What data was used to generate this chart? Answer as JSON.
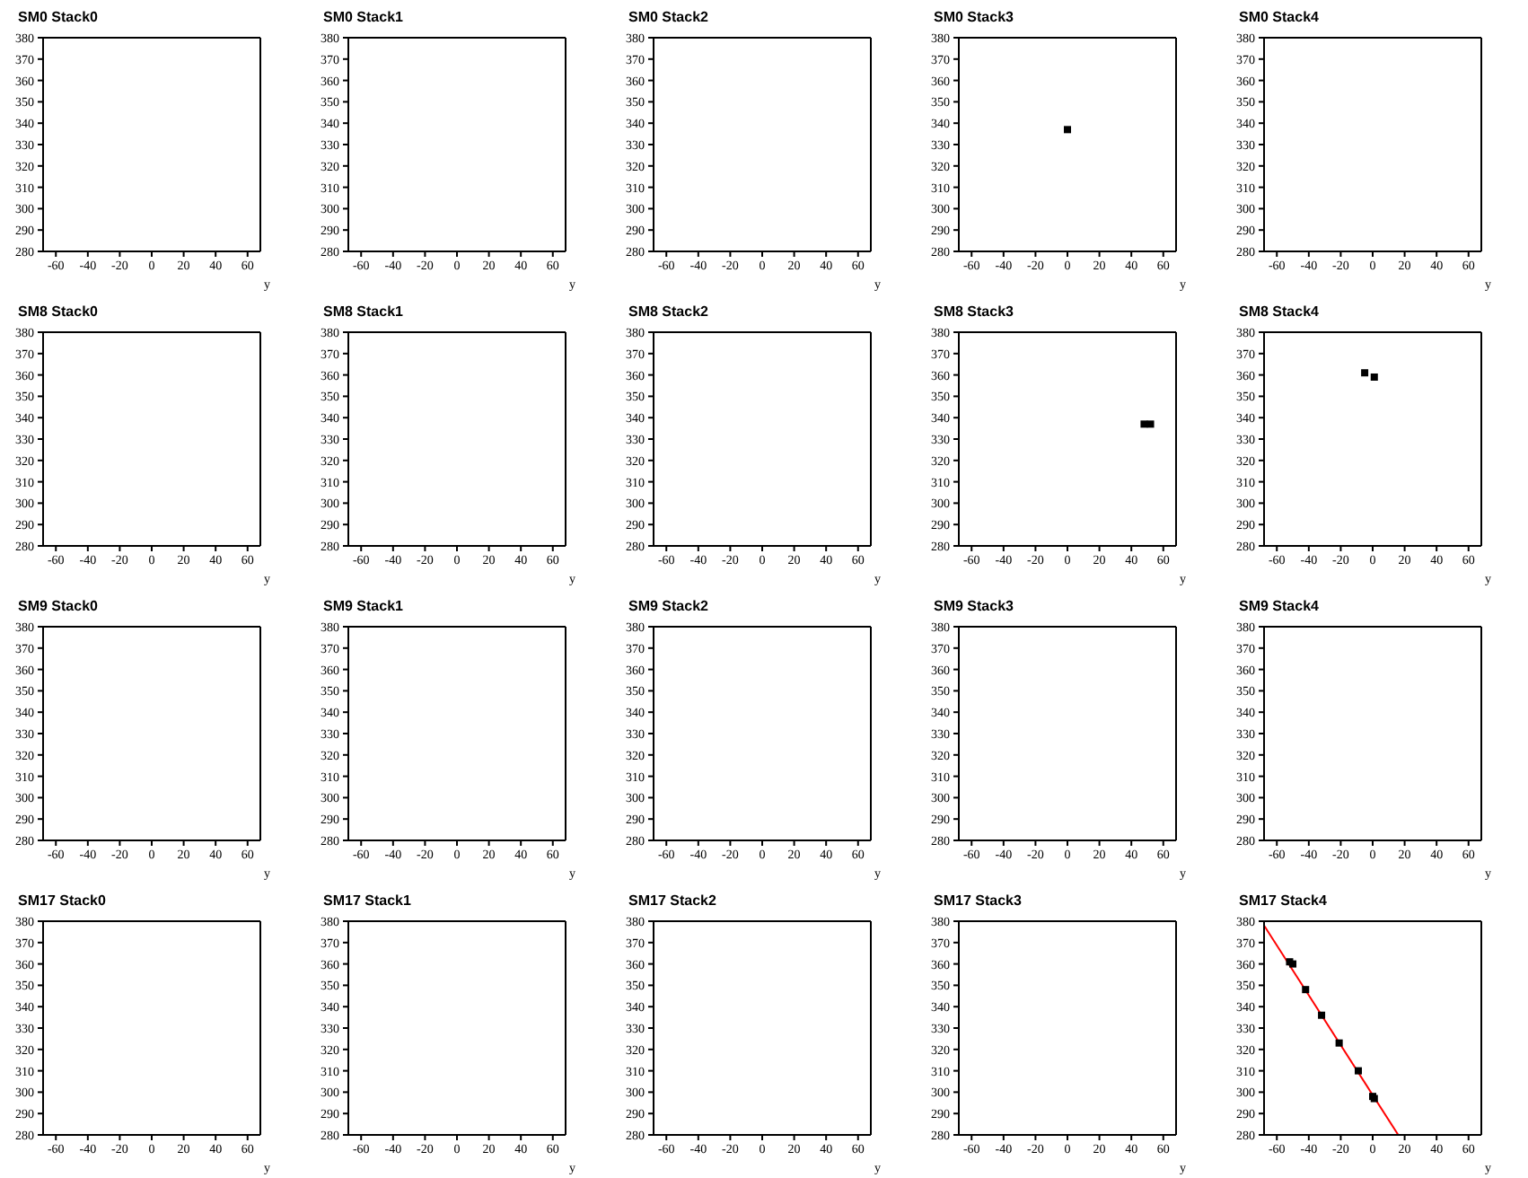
{
  "chart_data": [
    {
      "type": "scatter",
      "title": "SM0 Stack0",
      "xlabel": "y",
      "xlim": [
        -68,
        68
      ],
      "xticks": [
        -60,
        -40,
        -20,
        0,
        20,
        40,
        60
      ],
      "ylim": [
        280,
        380
      ],
      "yticks": [
        280,
        290,
        300,
        310,
        320,
        330,
        340,
        350,
        360,
        370,
        380
      ]
    },
    {
      "type": "scatter",
      "title": "SM0 Stack1",
      "xlabel": "y",
      "xlim": [
        -68,
        68
      ],
      "xticks": [
        -60,
        -40,
        -20,
        0,
        20,
        40,
        60
      ],
      "ylim": [
        280,
        380
      ],
      "yticks": [
        280,
        290,
        300,
        310,
        320,
        330,
        340,
        350,
        360,
        370,
        380
      ]
    },
    {
      "type": "scatter",
      "title": "SM0 Stack2",
      "xlabel": "y",
      "xlim": [
        -68,
        68
      ],
      "xticks": [
        -60,
        -40,
        -20,
        0,
        20,
        40,
        60
      ],
      "ylim": [
        280,
        380
      ],
      "yticks": [
        280,
        290,
        300,
        310,
        320,
        330,
        340,
        350,
        360,
        370,
        380
      ]
    },
    {
      "type": "scatter",
      "title": "SM0 Stack3",
      "xlabel": "y",
      "xlim": [
        -68,
        68
      ],
      "xticks": [
        -60,
        -40,
        -20,
        0,
        20,
        40,
        60
      ],
      "ylim": [
        280,
        380
      ],
      "yticks": [
        280,
        290,
        300,
        310,
        320,
        330,
        340,
        350,
        360,
        370,
        380
      ],
      "marker": "square",
      "series": [
        {
          "color": "#000000",
          "x": [
            0
          ],
          "values": [
            337
          ]
        }
      ]
    },
    {
      "type": "scatter",
      "title": "SM0 Stack4",
      "xlabel": "y",
      "xlim": [
        -68,
        68
      ],
      "xticks": [
        -60,
        -40,
        -20,
        0,
        20,
        40,
        60
      ],
      "ylim": [
        280,
        380
      ],
      "yticks": [
        280,
        290,
        300,
        310,
        320,
        330,
        340,
        350,
        360,
        370,
        380
      ]
    },
    {
      "type": "scatter",
      "title": "SM8 Stack0",
      "xlabel": "y",
      "xlim": [
        -68,
        68
      ],
      "xticks": [
        -60,
        -40,
        -20,
        0,
        20,
        40,
        60
      ],
      "ylim": [
        280,
        380
      ],
      "yticks": [
        280,
        290,
        300,
        310,
        320,
        330,
        340,
        350,
        360,
        370,
        380
      ]
    },
    {
      "type": "scatter",
      "title": "SM8 Stack1",
      "xlabel": "y",
      "xlim": [
        -68,
        68
      ],
      "xticks": [
        -60,
        -40,
        -20,
        0,
        20,
        40,
        60
      ],
      "ylim": [
        280,
        380
      ],
      "yticks": [
        280,
        290,
        300,
        310,
        320,
        330,
        340,
        350,
        360,
        370,
        380
      ]
    },
    {
      "type": "scatter",
      "title": "SM8 Stack2",
      "xlabel": "y",
      "xlim": [
        -68,
        68
      ],
      "xticks": [
        -60,
        -40,
        -20,
        0,
        20,
        40,
        60
      ],
      "ylim": [
        280,
        380
      ],
      "yticks": [
        280,
        290,
        300,
        310,
        320,
        330,
        340,
        350,
        360,
        370,
        380
      ]
    },
    {
      "type": "scatter",
      "title": "SM8 Stack3",
      "xlabel": "y",
      "xlim": [
        -68,
        68
      ],
      "xticks": [
        -60,
        -40,
        -20,
        0,
        20,
        40,
        60
      ],
      "ylim": [
        280,
        380
      ],
      "yticks": [
        280,
        290,
        300,
        310,
        320,
        330,
        340,
        350,
        360,
        370,
        380
      ],
      "marker": "square",
      "series": [
        {
          "color": "#000000",
          "x": [
            48,
            52
          ],
          "values": [
            337,
            337
          ]
        }
      ]
    },
    {
      "type": "scatter",
      "title": "SM8 Stack4",
      "xlabel": "y",
      "xlim": [
        -68,
        68
      ],
      "xticks": [
        -60,
        -40,
        -20,
        0,
        20,
        40,
        60
      ],
      "ylim": [
        280,
        380
      ],
      "yticks": [
        280,
        290,
        300,
        310,
        320,
        330,
        340,
        350,
        360,
        370,
        380
      ],
      "marker": "square",
      "series": [
        {
          "color": "#000000",
          "x": [
            -5,
            1
          ],
          "values": [
            361,
            359
          ]
        }
      ]
    },
    {
      "type": "scatter",
      "title": "SM9 Stack0",
      "xlabel": "y",
      "xlim": [
        -68,
        68
      ],
      "xticks": [
        -60,
        -40,
        -20,
        0,
        20,
        40,
        60
      ],
      "ylim": [
        280,
        380
      ],
      "yticks": [
        280,
        290,
        300,
        310,
        320,
        330,
        340,
        350,
        360,
        370,
        380
      ]
    },
    {
      "type": "scatter",
      "title": "SM9 Stack1",
      "xlabel": "y",
      "xlim": [
        -68,
        68
      ],
      "xticks": [
        -60,
        -40,
        -20,
        0,
        20,
        40,
        60
      ],
      "ylim": [
        280,
        380
      ],
      "yticks": [
        280,
        290,
        300,
        310,
        320,
        330,
        340,
        350,
        360,
        370,
        380
      ]
    },
    {
      "type": "scatter",
      "title": "SM9 Stack2",
      "xlabel": "y",
      "xlim": [
        -68,
        68
      ],
      "xticks": [
        -60,
        -40,
        -20,
        0,
        20,
        40,
        60
      ],
      "ylim": [
        280,
        380
      ],
      "yticks": [
        280,
        290,
        300,
        310,
        320,
        330,
        340,
        350,
        360,
        370,
        380
      ]
    },
    {
      "type": "scatter",
      "title": "SM9 Stack3",
      "xlabel": "y",
      "xlim": [
        -68,
        68
      ],
      "xticks": [
        -60,
        -40,
        -20,
        0,
        20,
        40,
        60
      ],
      "ylim": [
        280,
        380
      ],
      "yticks": [
        280,
        290,
        300,
        310,
        320,
        330,
        340,
        350,
        360,
        370,
        380
      ]
    },
    {
      "type": "scatter",
      "title": "SM9 Stack4",
      "xlabel": "y",
      "xlim": [
        -68,
        68
      ],
      "xticks": [
        -60,
        -40,
        -20,
        0,
        20,
        40,
        60
      ],
      "ylim": [
        280,
        380
      ],
      "yticks": [
        280,
        290,
        300,
        310,
        320,
        330,
        340,
        350,
        360,
        370,
        380
      ]
    },
    {
      "type": "scatter",
      "title": "SM17 Stack0",
      "xlabel": "y",
      "xlim": [
        -68,
        68
      ],
      "xticks": [
        -60,
        -40,
        -20,
        0,
        20,
        40,
        60
      ],
      "ylim": [
        280,
        380
      ],
      "yticks": [
        280,
        290,
        300,
        310,
        320,
        330,
        340,
        350,
        360,
        370,
        380
      ]
    },
    {
      "type": "scatter",
      "title": "SM17 Stack1",
      "xlabel": "y",
      "xlim": [
        -68,
        68
      ],
      "xticks": [
        -60,
        -40,
        -20,
        0,
        20,
        40,
        60
      ],
      "ylim": [
        280,
        380
      ],
      "yticks": [
        280,
        290,
        300,
        310,
        320,
        330,
        340,
        350,
        360,
        370,
        380
      ]
    },
    {
      "type": "scatter",
      "title": "SM17 Stack2",
      "xlabel": "y",
      "xlim": [
        -68,
        68
      ],
      "xticks": [
        -60,
        -40,
        -20,
        0,
        20,
        40,
        60
      ],
      "ylim": [
        280,
        380
      ],
      "yticks": [
        280,
        290,
        300,
        310,
        320,
        330,
        340,
        350,
        360,
        370,
        380
      ]
    },
    {
      "type": "scatter",
      "title": "SM17 Stack3",
      "xlabel": "y",
      "xlim": [
        -68,
        68
      ],
      "xticks": [
        -60,
        -40,
        -20,
        0,
        20,
        40,
        60
      ],
      "ylim": [
        280,
        380
      ],
      "yticks": [
        280,
        290,
        300,
        310,
        320,
        330,
        340,
        350,
        360,
        370,
        380
      ]
    },
    {
      "type": "scatter",
      "title": "SM17 Stack4",
      "xlabel": "y",
      "xlim": [
        -68,
        68
      ],
      "xticks": [
        -60,
        -40,
        -20,
        0,
        20,
        40,
        60
      ],
      "ylim": [
        280,
        380
      ],
      "yticks": [
        280,
        290,
        300,
        310,
        320,
        330,
        340,
        350,
        360,
        370,
        380
      ],
      "marker": "square",
      "series": [
        {
          "color": "#000000",
          "x": [
            -52,
            -50,
            -42,
            -32,
            -21,
            -9,
            0,
            1
          ],
          "values": [
            361,
            360,
            348,
            336,
            323,
            310,
            298,
            297
          ]
        },
        {
          "type": "line",
          "marker": "none",
          "color": "#ff0000",
          "x": [
            -68,
            16
          ],
          "values": [
            378,
            280
          ]
        }
      ]
    }
  ]
}
